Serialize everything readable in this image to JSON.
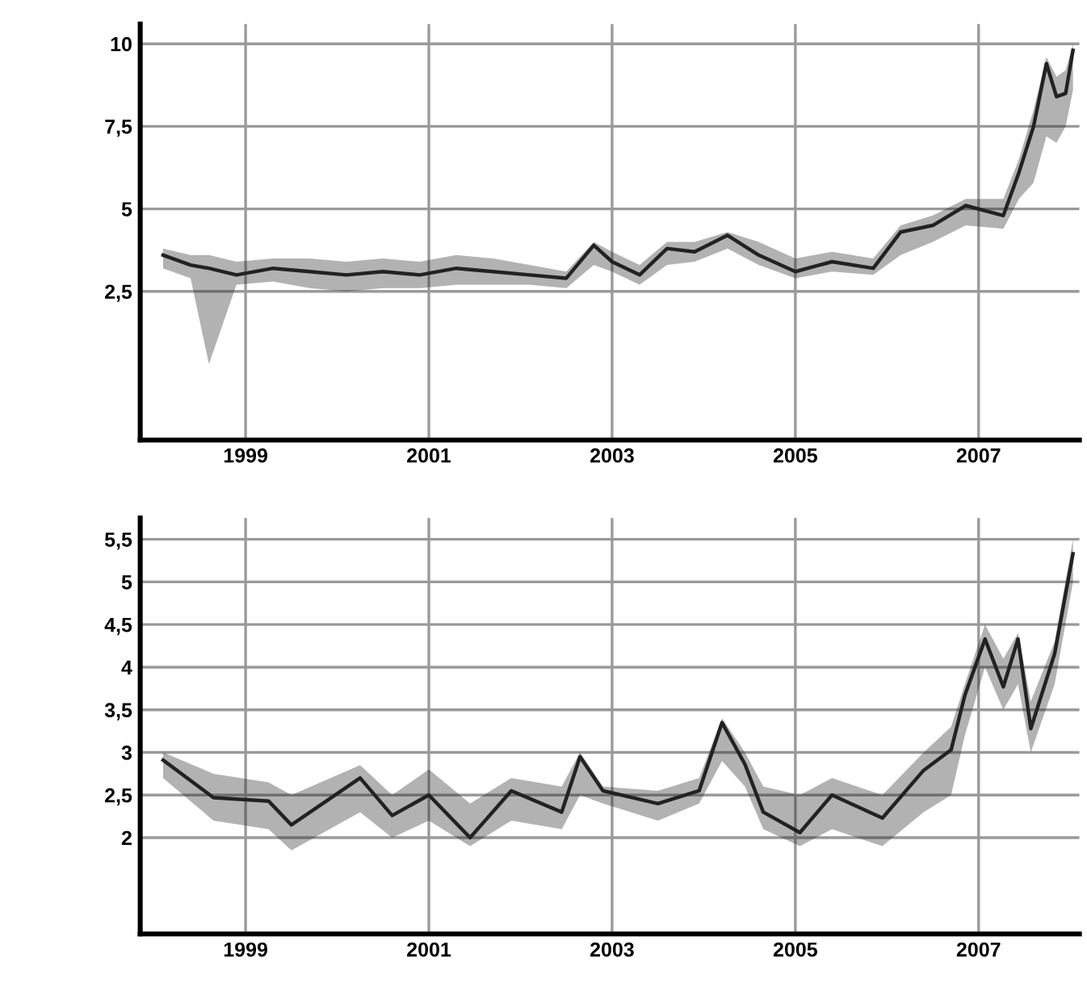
{
  "chart_data": [
    {
      "type": "line",
      "xlim": [
        1997.85,
        2008.1
      ],
      "ylim": [
        -2,
        10.6
      ],
      "xticks": [
        1999,
        2001,
        2003,
        2005,
        2007
      ],
      "yticks": [
        {
          "value": 2.5,
          "label": "2,5"
        },
        5,
        {
          "value": 7.5,
          "label": "7,5"
        },
        10
      ],
      "grid": true,
      "marker": "none",
      "line_style": "solid",
      "series": [
        {
          "color": "#222222",
          "x": [
            1998.1,
            1998.4,
            1998.6,
            1998.9,
            1999.3,
            1999.7,
            2000.1,
            2000.5,
            2000.9,
            2001.3,
            2001.7,
            2002.1,
            2002.5,
            2002.8,
            2003.0,
            2003.3,
            2003.6,
            2003.9,
            2004.26,
            2004.6,
            2005.0,
            2005.4,
            2005.85,
            2006.15,
            2006.5,
            2006.86,
            2007.27,
            2007.44,
            2007.6,
            2007.74,
            2007.85,
            2007.95,
            2008.03
          ],
          "values": [
            3.6,
            3.3,
            3.2,
            3.0,
            3.2,
            3.1,
            3.0,
            3.1,
            3.0,
            3.2,
            3.1,
            3.0,
            2.9,
            3.9,
            3.4,
            3.0,
            3.8,
            3.7,
            4.2,
            3.6,
            3.1,
            3.4,
            3.2,
            4.3,
            4.5,
            5.1,
            4.8,
            6.1,
            7.5,
            9.4,
            8.4,
            8.5,
            9.8
          ],
          "lower": [
            3.2,
            2.9,
            0.3,
            2.7,
            2.8,
            2.6,
            2.5,
            2.6,
            2.6,
            2.7,
            2.7,
            2.7,
            2.6,
            3.3,
            3.1,
            2.7,
            3.3,
            3.4,
            3.8,
            3.3,
            2.9,
            3.1,
            3.0,
            3.6,
            4.0,
            4.5,
            4.4,
            5.3,
            5.8,
            7.2,
            7.0,
            7.5,
            8.6
          ],
          "upper": [
            3.8,
            3.6,
            3.6,
            3.4,
            3.5,
            3.5,
            3.4,
            3.5,
            3.4,
            3.6,
            3.5,
            3.3,
            3.1,
            4.0,
            3.7,
            3.3,
            4.0,
            4.0,
            4.3,
            4.0,
            3.5,
            3.7,
            3.5,
            4.5,
            4.8,
            5.3,
            5.3,
            6.5,
            8.0,
            9.6,
            9.0,
            9.2,
            10.0
          ]
        }
      ]
    },
    {
      "type": "line",
      "xlim": [
        1997.85,
        2008.1
      ],
      "ylim": [
        0.87,
        5.75
      ],
      "xticks": [
        1999,
        2001,
        2003,
        2005,
        2007
      ],
      "yticks": [
        2,
        {
          "value": 2.5,
          "label": "2,5"
        },
        3,
        {
          "value": 3.5,
          "label": "3,5"
        },
        4,
        {
          "value": 4.5,
          "label": "4,5"
        },
        5,
        {
          "value": 5.5,
          "label": "5,5"
        }
      ],
      "grid": true,
      "marker": "none",
      "line_style": "solid",
      "series": [
        {
          "color": "#222222",
          "x": [
            1998.1,
            1998.65,
            1999.25,
            1999.5,
            2000.25,
            2000.6,
            2001.0,
            2001.45,
            2001.9,
            2002.45,
            2002.65,
            2002.9,
            2003.5,
            2003.95,
            2004.2,
            2004.45,
            2004.65,
            2005.05,
            2005.4,
            2005.95,
            2006.4,
            2006.7,
            2006.85,
            2007.07,
            2007.27,
            2007.43,
            2007.57,
            2007.83,
            2008.03
          ],
          "values": [
            2.91,
            2.47,
            2.43,
            2.15,
            2.7,
            2.26,
            2.5,
            2.0,
            2.55,
            2.3,
            2.95,
            2.55,
            2.4,
            2.55,
            3.35,
            2.86,
            2.3,
            2.06,
            2.5,
            2.23,
            2.79,
            3.03,
            3.67,
            4.33,
            3.77,
            4.33,
            3.28,
            4.16,
            5.33
          ],
          "lower": [
            2.7,
            2.2,
            2.1,
            1.85,
            2.3,
            2.0,
            2.2,
            1.9,
            2.2,
            2.1,
            2.5,
            2.4,
            2.2,
            2.4,
            2.9,
            2.6,
            2.1,
            1.9,
            2.1,
            1.9,
            2.3,
            2.5,
            3.2,
            4.0,
            3.5,
            3.8,
            3.0,
            3.8,
            5.0
          ],
          "upper": [
            3.0,
            2.75,
            2.65,
            2.5,
            2.85,
            2.5,
            2.8,
            2.4,
            2.7,
            2.6,
            3.0,
            2.6,
            2.55,
            2.7,
            3.4,
            3.0,
            2.6,
            2.5,
            2.7,
            2.5,
            3.0,
            3.3,
            3.8,
            4.5,
            4.1,
            4.4,
            3.6,
            4.3,
            5.5
          ]
        }
      ]
    }
  ]
}
